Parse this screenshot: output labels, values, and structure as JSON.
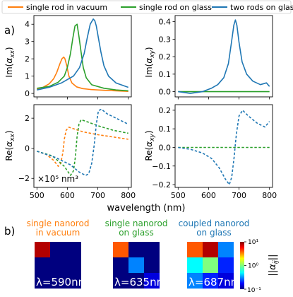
{
  "labels": {
    "panel_a": "a)",
    "panel_b": "b)"
  },
  "colors": {
    "orange": "#ff7f0e",
    "green": "#2ca02c",
    "blue": "#1f77b4"
  },
  "legend": [
    {
      "label": "single rod in vacuum",
      "color": "#ff7f0e"
    },
    {
      "label": "single rod on glass",
      "color": "#2ca02c"
    },
    {
      "label": "two rods on glass",
      "color": "#1f77b4"
    }
  ],
  "chart_data": [
    {
      "type": "line",
      "ylabel": "Im(αxx)",
      "xlim": [
        490,
        810
      ],
      "ylim": [
        -0.2,
        4.5
      ],
      "xticks": [
        500,
        600,
        700,
        800
      ],
      "yticks": [
        0,
        1,
        2,
        3,
        4
      ],
      "ytick_labels": [
        "0",
        "1",
        "2",
        "3",
        "4"
      ],
      "series": [
        {
          "name": "single rod in vacuum",
          "color": "#ff7f0e",
          "x": [
            500,
            520,
            540,
            555,
            565,
            575,
            582,
            588,
            592,
            598,
            605,
            615,
            630,
            650,
            680,
            720,
            760,
            800
          ],
          "y": [
            0.25,
            0.35,
            0.55,
            0.85,
            1.2,
            1.7,
            2.0,
            2.1,
            2.0,
            1.6,
            1.0,
            0.6,
            0.38,
            0.28,
            0.22,
            0.18,
            0.15,
            0.12
          ]
        },
        {
          "name": "single rod on glass",
          "color": "#2ca02c",
          "x": [
            500,
            540,
            570,
            590,
            600,
            610,
            618,
            625,
            632,
            638,
            645,
            652,
            662,
            680,
            720,
            760,
            800
          ],
          "y": [
            0.3,
            0.4,
            0.65,
            1.0,
            1.5,
            2.3,
            3.2,
            3.9,
            4.0,
            3.3,
            2.4,
            1.5,
            0.9,
            0.5,
            0.3,
            0.2,
            0.15
          ]
        },
        {
          "name": "two rods on glass",
          "color": "#1f77b4",
          "x": [
            500,
            540,
            580,
            620,
            640,
            655,
            665,
            675,
            685,
            690,
            695,
            702,
            710,
            720,
            735,
            760,
            800
          ],
          "y": [
            0.2,
            0.35,
            0.6,
            1.0,
            1.5,
            2.3,
            3.2,
            4.0,
            4.3,
            4.2,
            3.9,
            3.2,
            2.4,
            1.6,
            1.0,
            0.6,
            0.35
          ]
        }
      ]
    },
    {
      "type": "line",
      "ylabel": "Im(αxy)",
      "xlim": [
        490,
        810
      ],
      "ylim": [
        -0.03,
        0.435
      ],
      "xticks": [
        500,
        600,
        700,
        800
      ],
      "yticks": [
        0,
        0.1,
        0.2,
        0.3,
        0.4
      ],
      "ytick_labels": [
        "0.0",
        "0.1",
        "0.2",
        "0.3",
        "0.4"
      ],
      "series": [
        {
          "name": "single rod on glass",
          "color": "#2ca02c",
          "x": [
            500,
            800
          ],
          "y": [
            0,
            0
          ]
        },
        {
          "name": "two rods on glass",
          "color": "#1f77b4",
          "x": [
            500,
            540,
            580,
            610,
            630,
            650,
            665,
            675,
            683,
            688,
            693,
            700,
            710,
            725,
            745,
            770,
            790,
            800
          ],
          "y": [
            0,
            -0.01,
            0,
            0.02,
            0.04,
            0.08,
            0.16,
            0.28,
            0.38,
            0.41,
            0.38,
            0.28,
            0.17,
            0.1,
            0.06,
            0.04,
            0.05,
            0.03
          ]
        }
      ]
    },
    {
      "type": "line",
      "ylabel": "Re(αxx)",
      "annotation": "×10⁵ nm³",
      "xlim": [
        490,
        810
      ],
      "ylim": [
        -2.6,
        2.9
      ],
      "xticks": [
        500,
        600,
        700,
        800
      ],
      "yticks": [
        -2,
        0,
        2
      ],
      "ytick_labels": [
        "−2",
        "0",
        "2"
      ],
      "series": [
        {
          "name": "single rod in vacuum",
          "color": "#ff7f0e",
          "dashed": true,
          "x": [
            500,
            530,
            555,
            570,
            578,
            585,
            590,
            596,
            605,
            620,
            650,
            700,
            750,
            800
          ],
          "y": [
            -0.2,
            -0.4,
            -0.8,
            -1.2,
            -1.0,
            -0.3,
            0.6,
            1.2,
            1.4,
            1.3,
            1.1,
            0.9,
            0.75,
            0.6
          ]
        },
        {
          "name": "single rod on glass",
          "color": "#2ca02c",
          "dashed": true,
          "x": [
            500,
            550,
            590,
            610,
            620,
            626,
            632,
            638,
            645,
            660,
            700,
            750,
            800
          ],
          "y": [
            -0.2,
            -0.5,
            -1.2,
            -1.8,
            -1.5,
            -0.6,
            0.8,
            1.6,
            1.9,
            1.8,
            1.5,
            1.2,
            1.0
          ]
        },
        {
          "name": "two rods on glass",
          "color": "#1f77b4",
          "dashed": true,
          "x": [
            500,
            560,
            610,
            640,
            660,
            670,
            680,
            688,
            695,
            702,
            712,
            730,
            760,
            800
          ],
          "y": [
            -0.2,
            -0.6,
            -1.1,
            -1.6,
            -1.8,
            -1.7,
            -1.0,
            0.2,
            1.6,
            2.5,
            2.6,
            2.3,
            2.0,
            1.6
          ]
        }
      ]
    },
    {
      "type": "line",
      "ylabel": "Re(αxy)",
      "xlim": [
        490,
        810
      ],
      "ylim": [
        -0.215,
        0.23
      ],
      "xticks": [
        500,
        600,
        700,
        800
      ],
      "yticks": [
        -0.2,
        -0.1,
        0,
        0.1,
        0.2
      ],
      "ytick_labels": [
        "−0.2",
        "−0.1",
        "0.0",
        "0.1",
        "0.2"
      ],
      "series": [
        {
          "name": "single rod on glass",
          "color": "#2ca02c",
          "dashed": true,
          "x": [
            500,
            800
          ],
          "y": [
            0,
            0
          ]
        },
        {
          "name": "two rods on glass",
          "color": "#1f77b4",
          "dashed": true,
          "x": [
            500,
            540,
            580,
            610,
            635,
            655,
            668,
            676,
            684,
            688,
            692,
            700,
            712,
            730,
            760,
            785,
            800
          ],
          "y": [
            0,
            -0.01,
            -0.03,
            -0.06,
            -0.11,
            -0.17,
            -0.2,
            -0.16,
            -0.05,
            0.02,
            0.08,
            0.17,
            0.2,
            0.17,
            0.13,
            0.11,
            0.14
          ]
        }
      ]
    },
    {
      "type": "heatmap",
      "title_lines": [
        "single nanorod",
        "in vacuum"
      ],
      "title_color": "#ff7f0e",
      "lambda_label": "λ=590nm",
      "values": [
        [
          8.0,
          0.1,
          0.1
        ],
        [
          0.1,
          0.1,
          0.1
        ],
        [
          0.1,
          0.1,
          0.1
        ]
      ]
    },
    {
      "type": "heatmap",
      "title_lines": [
        "single nanorod",
        "on glass"
      ],
      "title_color": "#2ca02c",
      "lambda_label": "λ=635nm",
      "values": [
        [
          4.0,
          0.1,
          0.1
        ],
        [
          0.1,
          0.3,
          0.1
        ],
        [
          0.1,
          0.1,
          0.15
        ]
      ]
    },
    {
      "type": "heatmap",
      "title_lines": [
        "coupled nanorod",
        "on glass"
      ],
      "title_color": "#1f77b4",
      "lambda_label": "λ=687nm",
      "values": [
        [
          4.0,
          8.0,
          0.3
        ],
        [
          0.5,
          1.0,
          0.2
        ],
        [
          0.3,
          0.2,
          0.15
        ]
      ]
    }
  ],
  "colorbar": {
    "label": "||αij||",
    "range": [
      0.1,
      10
    ],
    "scale": "log",
    "tick_labels": [
      "10¹",
      "10⁰",
      "10⁻¹"
    ]
  },
  "xlabel": "wavelength (nm)"
}
